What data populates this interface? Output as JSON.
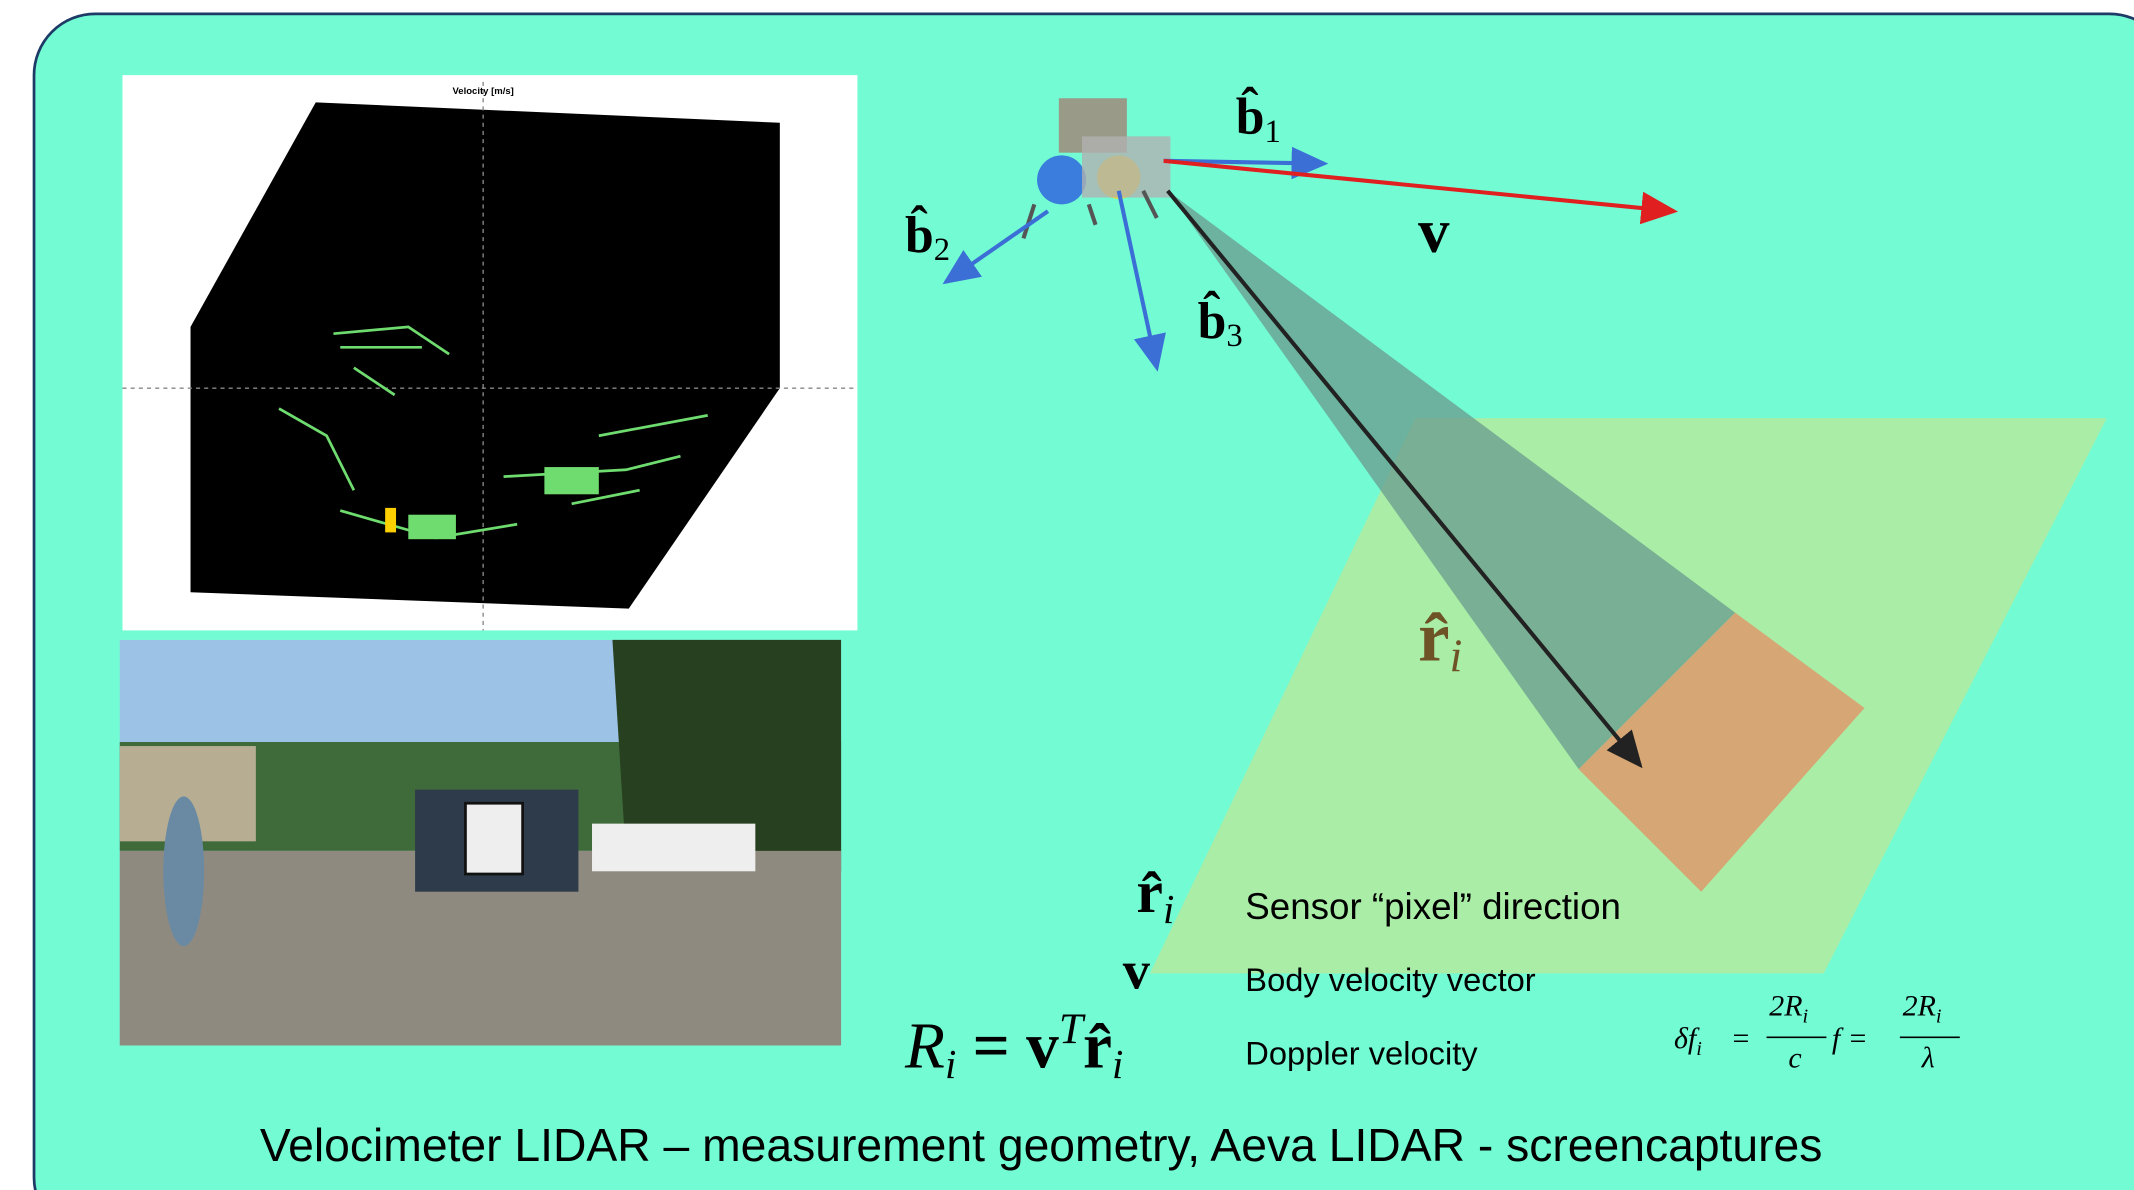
{
  "plot": {
    "title": "Velocity [m/s]"
  },
  "vectors": {
    "b1": {
      "symbol": "b̂",
      "subscript": "1"
    },
    "b2": {
      "symbol": "b̂",
      "subscript": "2"
    },
    "b3": {
      "symbol": "b̂",
      "subscript": "3"
    },
    "v": "v",
    "r": {
      "symbol": "r̂",
      "subscript": "i"
    }
  },
  "legend": [
    {
      "symbol": "r̂",
      "subscript": "i",
      "text": "Sensor “pixel” direction"
    },
    {
      "symbol": "v",
      "text": "Body velocity vector"
    },
    {
      "lhs": "R",
      "lhs_sub": "i",
      "eq": " = v",
      "sup": "T",
      "rhs": "r̂",
      "rhs_sub": "i",
      "text": "Doppler velocity"
    }
  ],
  "equation": {
    "lhs": "δf",
    "lhs_sub": "i",
    "eq1": "=",
    "num1": "2R",
    "num1_sub": "i",
    "den1": "c",
    "mid": "f =",
    "num2": "2R",
    "num2_sub": "i",
    "den2": "λ"
  },
  "caption": "Velocimeter LIDAR – measurement geometry, Aeva LIDAR - screencaptures"
}
